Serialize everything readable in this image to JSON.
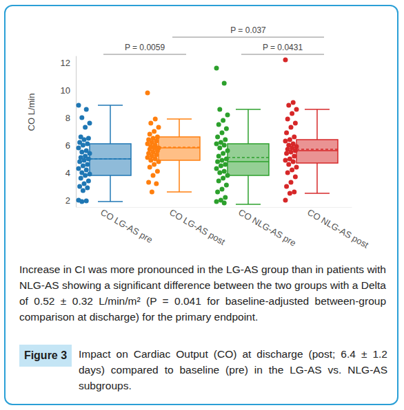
{
  "chart_data": {
    "type": "box",
    "y_label": "CO L/min",
    "categories": [
      "CO LG-AS pre",
      "CO LG-AS post",
      "CO NLG-AS pre",
      "CO NLG-AS post"
    ],
    "ylim": [
      1.5,
      12.5
    ],
    "yticks": [
      2,
      4,
      6,
      8,
      10,
      12
    ],
    "grid": false,
    "boxes": [
      {
        "color": "#1f77b4",
        "low": 1.9,
        "q1": 3.8,
        "median": 5.0,
        "mean": 5.0,
        "q3": 6.1,
        "high": 8.9,
        "points": [
          8.9,
          8.6,
          8.0,
          7.6,
          7.3,
          6.6,
          6.5,
          6.4,
          6.2,
          6.1,
          6.0,
          5.8,
          5.6,
          5.5,
          5.4,
          5.2,
          5.1,
          5.0,
          4.9,
          4.8,
          4.6,
          4.5,
          4.3,
          4.2,
          4.0,
          3.9,
          3.8,
          3.6,
          3.4,
          3.2,
          3.0,
          2.9,
          2.7,
          2.0,
          1.95,
          1.9
        ]
      },
      {
        "color": "#ff7f0e",
        "low": 2.6,
        "q1": 4.9,
        "median": 5.8,
        "mean": 5.85,
        "q3": 6.6,
        "high": 7.9,
        "points": [
          9.8,
          7.9,
          7.6,
          7.3,
          7.0,
          6.8,
          6.6,
          6.5,
          6.4,
          6.3,
          6.2,
          6.1,
          6.0,
          5.9,
          5.8,
          5.8,
          5.7,
          5.6,
          5.5,
          5.4,
          5.3,
          5.2,
          5.1,
          5.0,
          4.9,
          4.8,
          4.6,
          4.4,
          4.1,
          3.8,
          3.3,
          3.2,
          2.6
        ]
      },
      {
        "color": "#2ca02c",
        "low": 1.7,
        "q1": 3.8,
        "median": 4.8,
        "mean": 5.1,
        "q3": 6.1,
        "high": 8.6,
        "points": [
          11.6,
          10.5,
          8.6,
          8.2,
          7.8,
          7.5,
          7.2,
          6.9,
          6.6,
          6.4,
          6.2,
          6.1,
          6.0,
          5.8,
          5.6,
          5.4,
          5.2,
          5.0,
          4.9,
          4.8,
          4.6,
          4.5,
          4.3,
          4.1,
          4.0,
          3.8,
          3.6,
          3.4,
          3.1,
          2.8,
          2.6,
          2.2,
          2.0,
          1.9,
          1.8
        ]
      },
      {
        "color": "#d62728",
        "low": 2.5,
        "q1": 4.7,
        "median": 5.6,
        "mean": 5.7,
        "q3": 6.4,
        "high": 8.6,
        "points": [
          12.2,
          9.1,
          8.9,
          8.6,
          8.3,
          7.9,
          7.6,
          7.3,
          6.9,
          6.6,
          6.4,
          6.3,
          6.1,
          6.0,
          5.9,
          5.8,
          5.7,
          5.6,
          5.5,
          5.4,
          5.2,
          5.0,
          4.9,
          4.8,
          4.6,
          4.4,
          4.2,
          4.0,
          3.7,
          3.3,
          3.0,
          2.6,
          2.5,
          2.0
        ]
      }
    ],
    "annotations": [
      {
        "text": "P = 0.0059",
        "between": [
          0,
          1
        ]
      },
      {
        "text": "P = 0.037",
        "between": [
          1,
          3
        ]
      },
      {
        "text": "P = 0.0431",
        "between": [
          2,
          3
        ]
      }
    ]
  },
  "caption_block": {
    "paragraph": "Increase in CI was more pronounced in the LG-AS group than in patients with NLG-AS showing a significant difference between the two groups with a Delta of 0.52 ± 0.32 L/min/m² (P = 0.041 for baseline-adjusted between-group comparison at discharge) for the primary endpoint.",
    "label": "Figure 3",
    "caption": "Impact on Cardiac Output (CO) at discharge (post; 6.4 ± 1.2 days) compared to baseline (pre) in the LG-AS vs. NLG-AS subgroups."
  }
}
